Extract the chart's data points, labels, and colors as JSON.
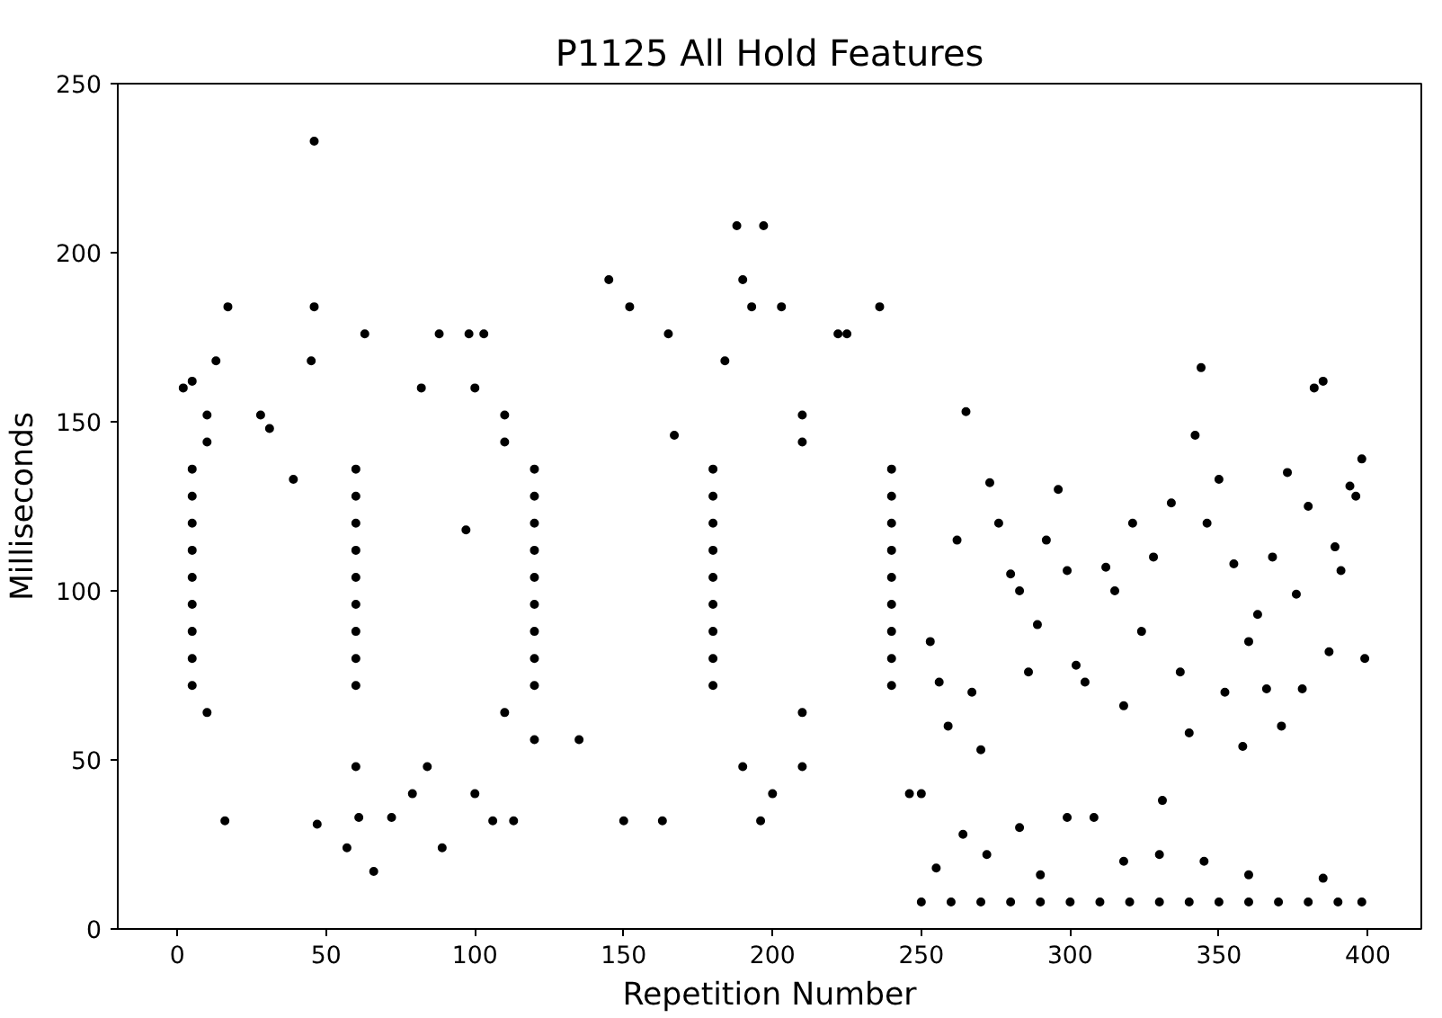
{
  "chart_data": {
    "type": "scatter",
    "title": "P1125 All Hold Features",
    "xlabel": "Repetition Number",
    "ylabel": "Milliseconds",
    "xlim": [
      -20,
      418
    ],
    "ylim": [
      0,
      250
    ],
    "xticks": [
      0,
      50,
      100,
      150,
      200,
      250,
      300,
      350,
      400
    ],
    "yticks": [
      0,
      50,
      100,
      150,
      200,
      250
    ],
    "grid": false,
    "marker": "circle",
    "series": [
      {
        "color": "#000000",
        "x": [
          46,
          17,
          46,
          152,
          188,
          197,
          190,
          145,
          193,
          203,
          236,
          63,
          88,
          98,
          103,
          165,
          222,
          225,
          13,
          45,
          2,
          5,
          28,
          100,
          82,
          184,
          167,
          31,
          39,
          97,
          60,
          16,
          47,
          61,
          66,
          72,
          57,
          89,
          79,
          100,
          84,
          106,
          113,
          150,
          163,
          196,
          200,
          210,
          246,
          120,
          190,
          135,
          250,
          5,
          60,
          120,
          180,
          240,
          5,
          60,
          120,
          180,
          240,
          5,
          60,
          120,
          180,
          240,
          5,
          60,
          120,
          180,
          240,
          5,
          60,
          120,
          180,
          240,
          5,
          60,
          120,
          180,
          240,
          5,
          60,
          120,
          180,
          240,
          5,
          60,
          120,
          180,
          240,
          5,
          60,
          120,
          180,
          240,
          10,
          110,
          210,
          10,
          110,
          210,
          10,
          110,
          210,
          253,
          256,
          259,
          262,
          265,
          267,
          270,
          273,
          276,
          280,
          283,
          286,
          289,
          292,
          296,
          299,
          302,
          305,
          308,
          312,
          315,
          318,
          321,
          324,
          328,
          331,
          334,
          337,
          340,
          342,
          344,
          346,
          350,
          352,
          355,
          358,
          360,
          363,
          366,
          368,
          371,
          373,
          376,
          378,
          380,
          382,
          385,
          387,
          389,
          391,
          394,
          396,
          398,
          399,
          264,
          283,
          299,
          250,
          260,
          270,
          280,
          290,
          300,
          310,
          320,
          330,
          340,
          350,
          360,
          370,
          380,
          390,
          398,
          255,
          272,
          290,
          318,
          330,
          345,
          360,
          385
        ],
        "values": [
          233,
          184,
          184,
          184,
          208,
          208,
          192,
          192,
          184,
          184,
          184,
          176,
          176,
          176,
          176,
          176,
          176,
          176,
          168,
          168,
          160,
          162,
          152,
          160,
          160,
          168,
          146,
          148,
          133,
          118,
          48,
          32,
          31,
          33,
          17,
          33,
          24,
          24,
          40,
          40,
          48,
          32,
          32,
          32,
          32,
          32,
          40,
          48,
          40,
          56,
          48,
          56,
          40,
          72,
          72,
          72,
          72,
          72,
          80,
          80,
          80,
          80,
          80,
          88,
          88,
          88,
          88,
          88,
          96,
          96,
          96,
          96,
          96,
          104,
          104,
          104,
          104,
          104,
          112,
          112,
          112,
          112,
          112,
          120,
          120,
          120,
          120,
          120,
          128,
          128,
          128,
          128,
          128,
          136,
          136,
          136,
          136,
          136,
          64,
          64,
          64,
          144,
          144,
          144,
          152,
          152,
          152,
          85,
          73,
          60,
          115,
          153,
          70,
          53,
          132,
          120,
          105,
          100,
          76,
          90,
          115,
          130,
          106,
          78,
          73,
          33,
          107,
          100,
          66,
          120,
          88,
          110,
          38,
          126,
          76,
          58,
          146,
          166,
          120,
          133,
          70,
          108,
          54,
          85,
          93,
          71,
          110,
          60,
          135,
          99,
          71,
          125,
          160,
          162,
          82,
          113,
          106,
          131,
          128,
          139,
          80,
          28,
          30,
          33,
          8,
          8,
          8,
          8,
          8,
          8,
          8,
          8,
          8,
          8,
          8,
          8,
          8,
          8,
          8,
          8,
          18,
          22,
          16,
          20,
          22,
          20,
          16,
          15
        ]
      }
    ]
  }
}
